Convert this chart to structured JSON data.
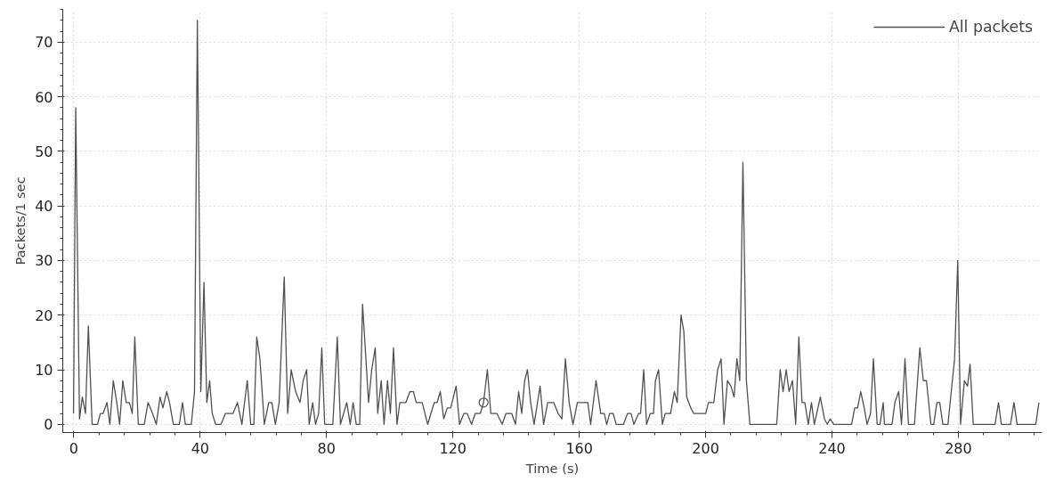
{
  "chart_data": {
    "type": "line",
    "xlabel": "Time (s)",
    "ylabel": "Packets/1 sec",
    "xlim": [
      -3.5,
      306.5
    ],
    "ylim": [
      -1.5,
      76
    ],
    "xticks": [
      0,
      40,
      80,
      120,
      160,
      200,
      240,
      280
    ],
    "yticks": [
      0,
      10,
      20,
      30,
      40,
      50,
      60,
      70
    ],
    "grid": true,
    "legend": "top right",
    "marker": "none",
    "line_style": "solid",
    "series": [
      {
        "name": "All packets",
        "color": "#505050",
        "x": [
          -0.1,
          0.6,
          1.8,
          2.7,
          3.7,
          4.6,
          5.8,
          7.5,
          8.4,
          9.3,
          10.5,
          11.4,
          12.5,
          13.6,
          14.5,
          15.5,
          16.6,
          17.6,
          18.5,
          19.3,
          20.4,
          22.3,
          23.5,
          24.9,
          26.1,
          27.3,
          28.2,
          29.4,
          30.3,
          31.5,
          33.4,
          34.4,
          35.3,
          37.2,
          38.2,
          39.1,
          40.2,
          41.2,
          42.1,
          43.0,
          43.8,
          44.9,
          46.6,
          48.0,
          50.4,
          51.8,
          53.2,
          54.9,
          56.0,
          57.0,
          57.9,
          58.9,
          60.3,
          61.7,
          62.7,
          63.8,
          65.0,
          66.6,
          67.7,
          68.8,
          70.2,
          71.6,
          72.6,
          73.7,
          74.5,
          75.6,
          76.5,
          77.5,
          78.5,
          79.4,
          82.0,
          83.4,
          84.4,
          86.4,
          87.5,
          88.4,
          89.4,
          90.5,
          91.4,
          93.3,
          94.3,
          95.4,
          96.2,
          97.3,
          98.2,
          99.3,
          100.2,
          101.2,
          102.3,
          103.2,
          105.1,
          106.4,
          107.5,
          108.4,
          110.3,
          112.0,
          114.1,
          115.0,
          116.0,
          117.1,
          118.2,
          119.3,
          121.0,
          122.1,
          123.5,
          124.5,
          125.9,
          127.1,
          128.7,
          129.7,
          130.9,
          132.0,
          133.9,
          135.6,
          136.8,
          138.6,
          139.8,
          140.8,
          141.8,
          142.7,
          143.6,
          144.6,
          145.7,
          147.6,
          148.7,
          150.0,
          151.9,
          153.3,
          154.5,
          155.6,
          156.8,
          158.0,
          159.4,
          162.7,
          163.6,
          165.3,
          166.8,
          167.9,
          168.7,
          169.6,
          170.7,
          171.7,
          174.0,
          175.3,
          176.4,
          177.3,
          178.8,
          179.4,
          180.4,
          181.3,
          182.5,
          183.5,
          184.1,
          185.1,
          186.3,
          187.2,
          188.9,
          190.1,
          191.0,
          192.2,
          193.1,
          194.0,
          195.3,
          196.2,
          200.0,
          200.9,
          202.6,
          203.8,
          204.9,
          205.8,
          206.9,
          208.0,
          209.0,
          209.9,
          210.8,
          211.8,
          212.9,
          214.0,
          222.5,
          223.6,
          224.5,
          225.5,
          226.4,
          227.5,
          228.5,
          229.5,
          230.5,
          231.4,
          232.5,
          233.5,
          234.4,
          236.3,
          237.6,
          238.5,
          239.4,
          240.6,
          246.2,
          247.2,
          248.1,
          249.1,
          250.2,
          251.1,
          252.2,
          253.1,
          254.3,
          255.2,
          256.2,
          256.6,
          259.0,
          259.9,
          261.1,
          262.0,
          263.1,
          264.2,
          266.1,
          267.8,
          268.9,
          269.9,
          271.3,
          272.2,
          273.2,
          274.1,
          275.1,
          276.7,
          278.8,
          279.8,
          280.7,
          281.9,
          282.9,
          283.7,
          284.7,
          291.6,
          292.7,
          293.6,
          296.5,
          297.6,
          298.6,
          304.5,
          305.5
        ],
        "values": [
          2,
          58,
          1,
          5,
          2,
          18,
          0,
          0,
          2,
          2,
          4,
          0,
          8,
          4,
          0,
          8,
          4,
          4,
          2,
          16,
          0,
          0,
          4,
          2,
          0,
          5,
          3,
          6,
          4,
          0,
          0,
          4,
          0,
          0,
          6,
          74,
          6,
          26,
          4,
          8,
          2,
          0,
          0,
          2,
          2,
          4,
          0,
          8,
          0,
          0,
          16,
          12,
          0,
          4,
          4,
          0,
          4,
          27,
          2,
          10,
          6,
          4,
          8,
          10,
          0,
          4,
          0,
          2,
          14,
          0,
          0,
          16,
          0,
          4,
          0,
          4,
          0,
          0,
          22,
          4,
          10,
          14,
          2,
          8,
          0,
          8,
          2,
          14,
          0,
          4,
          4,
          6,
          6,
          4,
          4,
          0,
          4,
          4,
          6,
          1,
          3,
          3,
          7,
          0,
          2,
          2,
          0,
          2,
          2,
          4,
          10,
          2,
          2,
          0,
          2,
          2,
          0,
          6,
          2,
          8,
          10,
          4,
          0,
          7,
          0,
          4,
          4,
          2,
          1,
          12,
          4,
          0,
          4,
          4,
          0,
          8,
          2,
          2,
          0,
          2,
          2,
          0,
          0,
          2,
          2,
          0,
          2,
          2,
          10,
          0,
          2,
          2,
          8,
          10,
          0,
          2,
          2,
          6,
          4,
          20,
          17,
          5,
          3,
          2,
          2,
          4,
          4,
          10,
          12,
          0,
          8,
          7,
          5,
          12,
          8,
          48,
          8,
          0,
          0,
          10,
          6,
          10,
          6,
          8,
          0,
          16,
          4,
          4,
          0,
          4,
          0,
          5,
          1,
          0,
          1,
          0,
          0,
          3,
          3,
          6,
          3,
          0,
          2,
          12,
          0,
          0,
          4,
          0,
          0,
          4,
          6,
          0,
          12,
          0,
          0,
          14,
          8,
          8,
          0,
          0,
          4,
          4,
          0,
          0,
          12,
          30,
          0,
          8,
          7,
          11,
          0,
          0,
          4,
          0,
          0,
          4,
          0,
          0,
          4
        ]
      },
      {
        "type": "scatter",
        "marker": "circle",
        "color": "#505050",
        "x": [
          129.7
        ],
        "values": [
          4
        ]
      }
    ]
  }
}
